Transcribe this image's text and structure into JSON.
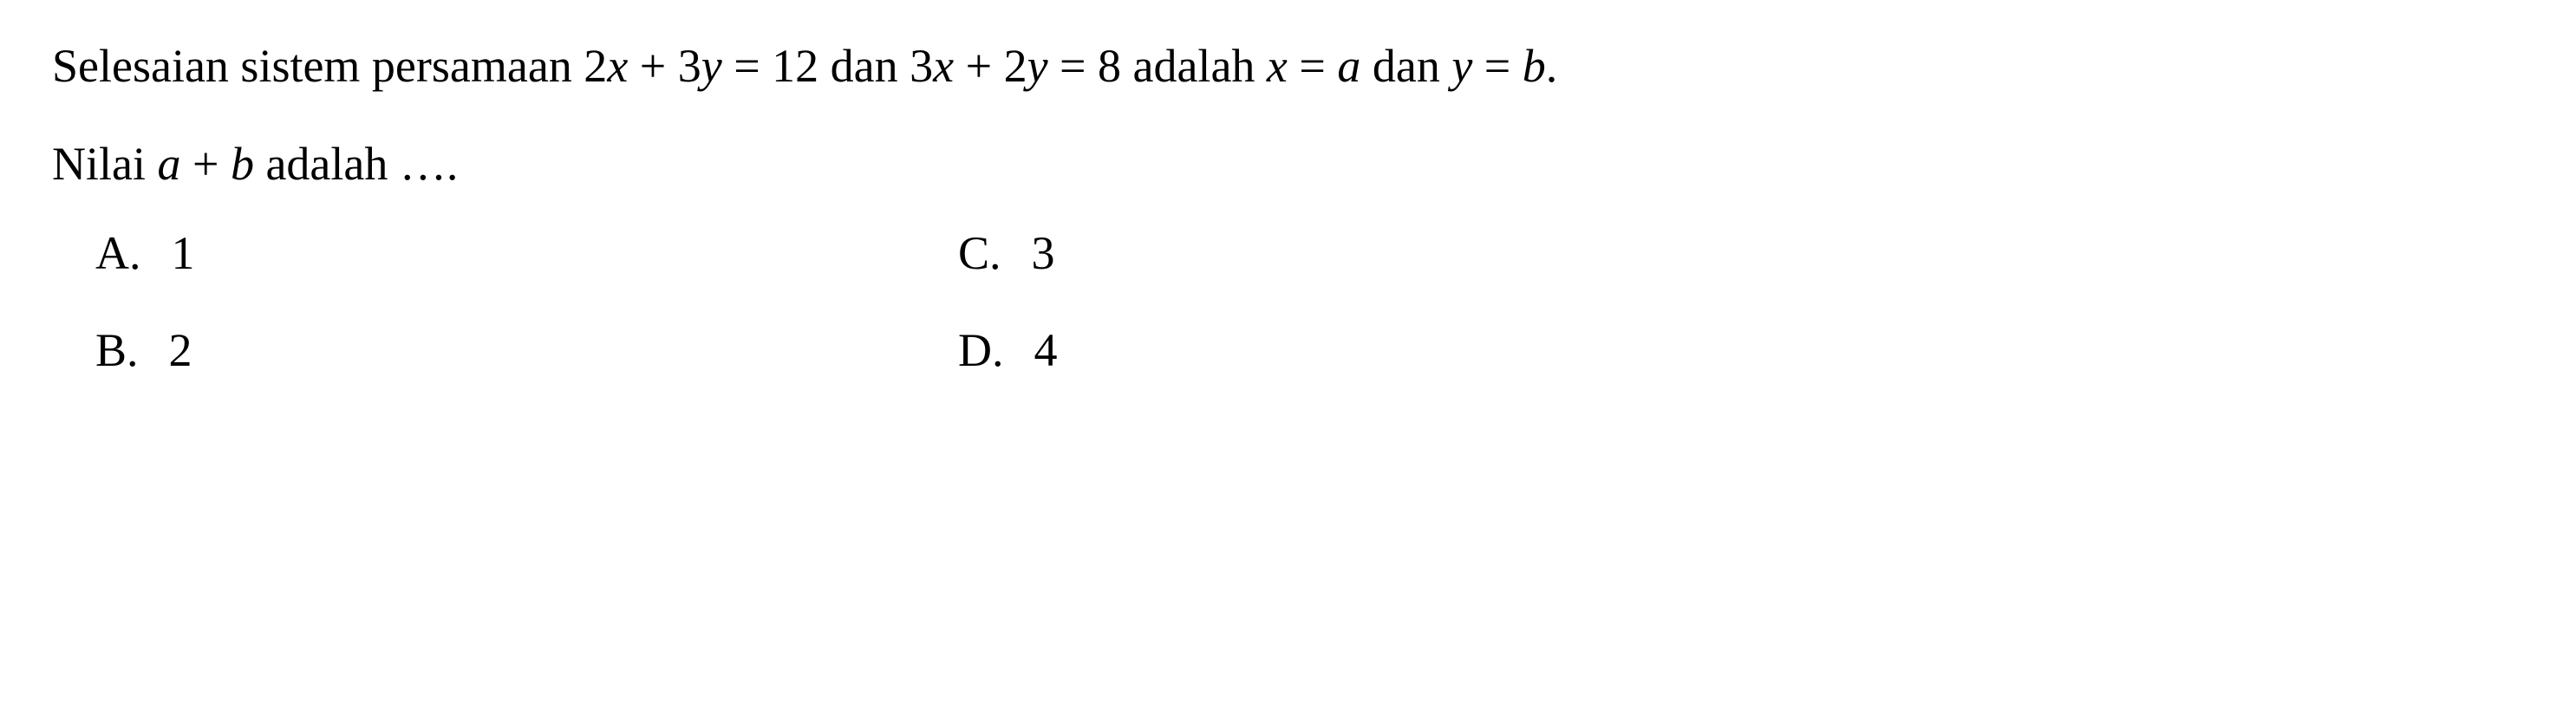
{
  "question": {
    "line1_part1": "Selesaian sistem persamaan 2",
    "line1_var1": "x",
    "line1_part2": " + 3",
    "line1_var2": "y",
    "line1_part3": " = 12 dan 3",
    "line1_var3": "x",
    "line1_part4": " + 2",
    "line1_var4": "y",
    "line1_part5": " = 8 adalah ",
    "line2_var1": "x",
    "line2_part1": " = ",
    "line2_var2": "a",
    "line2_part2": " dan ",
    "line2_var3": "y",
    "line2_part3": " = ",
    "line2_var4": "b",
    "line2_part4": "."
  },
  "prompt": {
    "part1": "Nilai ",
    "var1": "a",
    "part2": " + ",
    "var2": "b",
    "part3": " adalah …."
  },
  "options": {
    "a": {
      "letter": "A.",
      "value": "1"
    },
    "b": {
      "letter": "B.",
      "value": "2"
    },
    "c": {
      "letter": "C.",
      "value": "3"
    },
    "d": {
      "letter": "D.",
      "value": "4"
    }
  },
  "styling": {
    "font_size": 54,
    "text_color": "#000000",
    "background_color": "#ffffff",
    "font_family": "Times New Roman"
  }
}
